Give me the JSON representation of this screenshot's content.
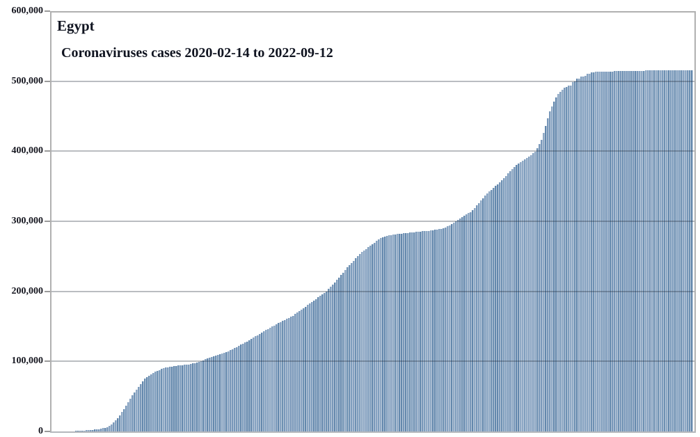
{
  "figure": {
    "title": "Egypt",
    "subtitle": "Coronaviruses cases 2020-02-14 to 2022-09-12"
  },
  "chart_data": {
    "type": "bar",
    "title": "Egypt",
    "subtitle": "Coronaviruses cases 2020-02-14 to 2022-09-12",
    "x_range": [
      "2020-02-14",
      "2022-09-12"
    ],
    "x_unit": "days since 2020-02-14",
    "n_days": 941,
    "x_tick_labels": [],
    "ylim": [
      0,
      600000
    ],
    "yticks": [
      {
        "value": 0,
        "label": "0"
      },
      {
        "value": 100000,
        "label": "100,000"
      },
      {
        "value": 200000,
        "label": "200,000"
      },
      {
        "value": 300000,
        "label": "300,000"
      },
      {
        "value": 400000,
        "label": "400,000"
      },
      {
        "value": 500000,
        "label": "500,000"
      },
      {
        "value": 600000,
        "label": "600,000"
      }
    ],
    "grid": "horizontal",
    "legend": "none",
    "series": [
      {
        "name": "Coronaviruses cases (cumulative)",
        "keypoints_day_value": [
          [
            0,
            1
          ],
          [
            30,
            400
          ],
          [
            45,
            1100
          ],
          [
            56,
            2000
          ],
          [
            70,
            3500
          ],
          [
            80,
            5800
          ],
          [
            87,
            9500
          ],
          [
            97,
            19500
          ],
          [
            107,
            34000
          ],
          [
            117,
            50000
          ],
          [
            128,
            65000
          ],
          [
            138,
            77000
          ],
          [
            148,
            83500
          ],
          [
            158,
            88000
          ],
          [
            168,
            91500
          ],
          [
            180,
            93500
          ],
          [
            199,
            95500
          ],
          [
            212,
            98000
          ],
          [
            228,
            104000
          ],
          [
            244,
            109500
          ],
          [
            260,
            115000
          ],
          [
            276,
            123000
          ],
          [
            291,
            131000
          ],
          [
            306,
            140000
          ],
          [
            321,
            148500
          ],
          [
            336,
            156500
          ],
          [
            352,
            164000
          ],
          [
            370,
            176500
          ],
          [
            386,
            188000
          ],
          [
            403,
            200000
          ],
          [
            420,
            218000
          ],
          [
            437,
            238000
          ],
          [
            455,
            256000
          ],
          [
            471,
            268000
          ],
          [
            483,
            276000
          ],
          [
            495,
            280000
          ],
          [
            512,
            282500
          ],
          [
            532,
            284500
          ],
          [
            557,
            287000
          ],
          [
            577,
            290500
          ],
          [
            592,
            299000
          ],
          [
            617,
            315000
          ],
          [
            638,
            339000
          ],
          [
            658,
            356000
          ],
          [
            679,
            378000
          ],
          [
            699,
            391500
          ],
          [
            711,
            400500
          ],
          [
            719,
            417000
          ],
          [
            725,
            436000
          ],
          [
            730,
            455000
          ],
          [
            740,
            477000
          ],
          [
            745,
            484000
          ],
          [
            752,
            490500
          ],
          [
            758,
            493300
          ],
          [
            764,
            493800
          ],
          [
            765,
            499800
          ],
          [
            769,
            500300
          ],
          [
            770,
            503500
          ],
          [
            775,
            503900
          ],
          [
            776,
            506800
          ],
          [
            783,
            507200
          ],
          [
            784,
            510000
          ],
          [
            790,
            510600
          ],
          [
            791,
            512800
          ],
          [
            800,
            513300
          ],
          [
            830,
            514300
          ],
          [
            880,
            515300
          ],
          [
            941,
            515700
          ]
        ]
      }
    ]
  },
  "colors": {
    "background": "#ffffff",
    "bar_palette": [
      "#7e9dbd",
      "#6d90b2",
      "#8fa9c5",
      "#7897b9",
      "#6287ac",
      "#86a2c1"
    ],
    "bar_separator": "#bac9da",
    "gridline": "rgba(25,35,50,0.30)",
    "frame": "#b0b0b0",
    "text": "#101420"
  }
}
